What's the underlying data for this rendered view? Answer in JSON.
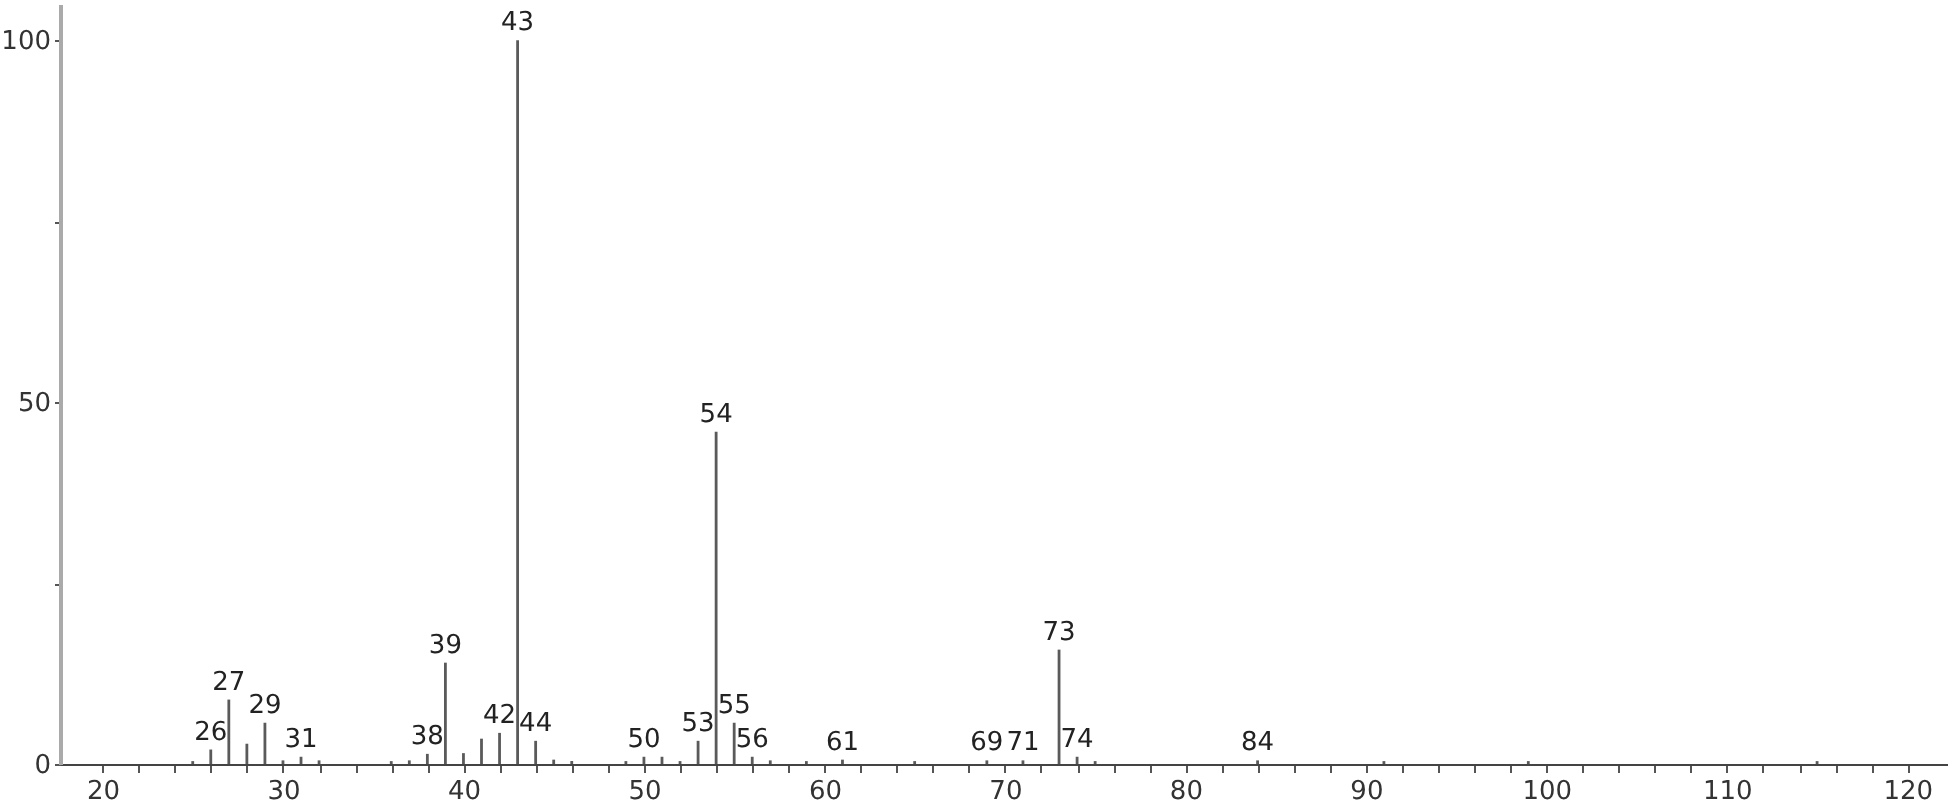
{
  "chart_data": {
    "type": "bar",
    "color": "#5a5a5a",
    "x": [
      25,
      26,
      27,
      28,
      29,
      30,
      31,
      32,
      36,
      37,
      38,
      39,
      40,
      41,
      42,
      43,
      44,
      45,
      46,
      49,
      50,
      51,
      52,
      53,
      54,
      55,
      56,
      57,
      59,
      61,
      65,
      69,
      71,
      73,
      74,
      75,
      84,
      91,
      99,
      115
    ],
    "values": [
      0.4,
      2.0,
      8.9,
      2.8,
      5.7,
      0.5,
      1.0,
      0.5,
      0.4,
      0.5,
      1.4,
      14.0,
      1.5,
      3.5,
      4.3,
      100,
      3.2,
      0.6,
      0.4,
      0.4,
      1.0,
      1.0,
      0.4,
      3.2,
      45.9,
      5.7,
      1.0,
      0.5,
      0.4,
      0.6,
      0.4,
      0.5,
      0.5,
      15.8,
      1.0,
      0.4,
      0.5,
      0.4,
      0.4,
      0.4
    ],
    "xlim": [
      18.2,
      121.7
    ],
    "ylim": [
      0,
      105
    ],
    "xticks": [
      20,
      {
        "value": 22,
        "label": null
      },
      {
        "value": 24,
        "label": null
      },
      {
        "value": 26,
        "label": null
      },
      {
        "value": 28,
        "label": null
      },
      30,
      {
        "value": 32,
        "label": null
      },
      {
        "value": 34,
        "label": null
      },
      {
        "value": 36,
        "label": null
      },
      {
        "value": 38,
        "label": null
      },
      40,
      {
        "value": 42,
        "label": null
      },
      {
        "value": 44,
        "label": null
      },
      {
        "value": 46,
        "label": null
      },
      {
        "value": 48,
        "label": null
      },
      50,
      {
        "value": 52,
        "label": null
      },
      {
        "value": 54,
        "label": null
      },
      {
        "value": 56,
        "label": null
      },
      {
        "value": 58,
        "label": null
      },
      60,
      {
        "value": 62,
        "label": null
      },
      {
        "value": 64,
        "label": null
      },
      {
        "value": 66,
        "label": null
      },
      {
        "value": 68,
        "label": null
      },
      70,
      {
        "value": 72,
        "label": null
      },
      {
        "value": 74,
        "label": null
      },
      {
        "value": 76,
        "label": null
      },
      {
        "value": 78,
        "label": null
      },
      80,
      {
        "value": 82,
        "label": null
      },
      {
        "value": 84,
        "label": null
      },
      {
        "value": 86,
        "label": null
      },
      {
        "value": 88,
        "label": null
      },
      90,
      {
        "value": 92,
        "label": null
      },
      {
        "value": 94,
        "label": null
      },
      {
        "value": 96,
        "label": null
      },
      {
        "value": 98,
        "label": null
      },
      100,
      {
        "value": 102,
        "label": null
      },
      {
        "value": 104,
        "label": null
      },
      {
        "value": 106,
        "label": null
      },
      {
        "value": 108,
        "label": null
      },
      110,
      {
        "value": 112,
        "label": null
      },
      {
        "value": 114,
        "label": null
      },
      {
        "value": 116,
        "label": null
      },
      {
        "value": 118,
        "label": null
      },
      120
    ],
    "yticks": [
      0,
      {
        "value": 25,
        "label": null
      },
      50,
      {
        "value": 75,
        "label": null
      },
      100
    ],
    "annotations": [
      {
        "text": "26",
        "x": 26,
        "y": 2.0
      },
      {
        "text": "27",
        "x": 27,
        "y": 8.9
      },
      {
        "text": "29",
        "x": 29,
        "y": 5.7
      },
      {
        "text": "31",
        "x": 31,
        "y": 1.0
      },
      {
        "text": "38",
        "x": 38,
        "y": 1.4
      },
      {
        "text": "39",
        "x": 39,
        "y": 14.0
      },
      {
        "text": "42",
        "x": 42,
        "y": 4.3
      },
      {
        "text": "43",
        "x": 43,
        "y": 100
      },
      {
        "text": "44",
        "x": 44,
        "y": 3.2
      },
      {
        "text": "50",
        "x": 50,
        "y": 1.0
      },
      {
        "text": "53",
        "x": 53,
        "y": 3.2
      },
      {
        "text": "54",
        "x": 54,
        "y": 45.9
      },
      {
        "text": "55",
        "x": 55,
        "y": 5.7
      },
      {
        "text": "56",
        "x": 56,
        "y": 1.0
      },
      {
        "text": "61",
        "x": 61,
        "y": 0.6
      },
      {
        "text": "69",
        "x": 69,
        "y": 0.5
      },
      {
        "text": "71",
        "x": 71,
        "y": 0.5
      },
      {
        "text": "73",
        "x": 73,
        "y": 15.8
      },
      {
        "text": "74",
        "x": 74,
        "y": 1.0
      },
      {
        "text": "84",
        "x": 84,
        "y": 0.5
      }
    ]
  }
}
